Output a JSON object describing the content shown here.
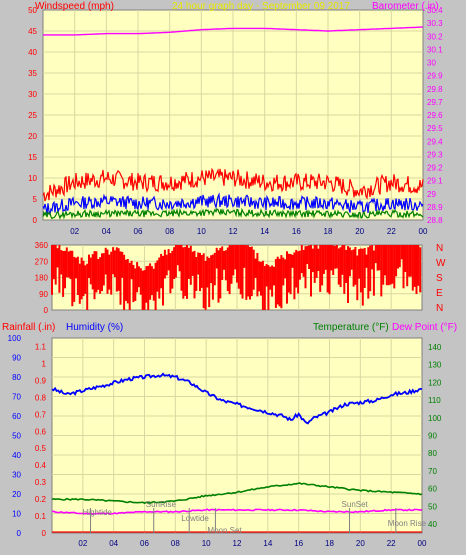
{
  "chart_data": [
    {
      "type": "line",
      "title": "24 hour graph day - September 09 2017",
      "ylabel_left": "Windspeed (mph)",
      "ylabel_right": "Barometer (.in)",
      "x_ticks": [
        "02",
        "04",
        "06",
        "08",
        "10",
        "12",
        "14",
        "16",
        "18",
        "20",
        "22",
        "00"
      ],
      "y_left_ticks": [
        "0",
        "5",
        "10",
        "15",
        "20",
        "25",
        "30",
        "35",
        "40",
        "45",
        "50"
      ],
      "y_right_ticks": [
        "28.8",
        "28.9",
        "29",
        "29.1",
        "29.2",
        "29.3",
        "29.4",
        "29.5",
        "29.6",
        "29.7",
        "29.8",
        "29.9",
        "30",
        "30.1",
        "30.2",
        "30.3",
        "30.4"
      ],
      "ylim_left": [
        0,
        50
      ],
      "ylim_right": [
        28.8,
        30.4
      ],
      "series": [
        {
          "name": "Barometer",
          "axis": "right",
          "x": [
            0,
            2,
            4,
            6,
            8,
            10,
            12,
            14,
            16,
            18,
            20,
            22,
            24
          ],
          "values": [
            30.21,
            30.21,
            30.22,
            30.22,
            30.23,
            30.25,
            30.26,
            30.26,
            30.25,
            30.24,
            30.25,
            30.26,
            30.27
          ]
        },
        {
          "name": "Gust",
          "axis": "left",
          "x": [
            0,
            2,
            4,
            6,
            8,
            10,
            12,
            14,
            16,
            18,
            20,
            22,
            24
          ],
          "values": [
            6,
            9,
            10,
            9,
            9,
            10,
            10,
            9,
            9,
            9,
            7,
            9,
            8
          ]
        },
        {
          "name": "Windspeed",
          "axis": "left",
          "x": [
            0,
            2,
            4,
            6,
            8,
            10,
            12,
            14,
            16,
            18,
            20,
            22,
            24
          ],
          "values": [
            2.5,
            4,
            4.5,
            4,
            4,
            4.5,
            4.5,
            4,
            4,
            4,
            3,
            4,
            3.5
          ]
        },
        {
          "name": "Average",
          "axis": "left",
          "x": [
            0,
            2,
            4,
            6,
            8,
            10,
            12,
            14,
            16,
            18,
            20,
            22,
            24
          ],
          "values": [
            1,
            1.5,
            1.5,
            1.5,
            1.5,
            1.8,
            1.8,
            1.6,
            1.5,
            1.5,
            1.2,
            1.5,
            1.3
          ]
        }
      ],
      "grid": true,
      "colors": {
        "gust": "#ff0000",
        "wind": "#0000ff",
        "avg": "#008000",
        "baro": "#ff00ff",
        "left_axis": "#ff0000",
        "right_axis": "#ff00ff",
        "title": "#e8e800"
      }
    },
    {
      "type": "scatter",
      "title": "",
      "y_ticks": [
        "0",
        "90",
        "180",
        "270",
        "360"
      ],
      "compass_labels": [
        "N",
        "W",
        "S",
        "E",
        "N"
      ],
      "ylim": [
        0,
        360
      ],
      "series": [
        {
          "name": "Wind direction",
          "x": [
            0,
            2,
            4,
            6,
            8,
            10,
            12,
            14,
            16,
            18,
            20,
            22,
            24
          ],
          "values": [
            300,
            180,
            250,
            120,
            280,
            200,
            310,
            150,
            260,
            290,
            220,
            330,
            270
          ]
        }
      ],
      "grid": true,
      "colors": {
        "dir": "#ff0000",
        "label": "#ff0000"
      }
    },
    {
      "type": "line",
      "labels": {
        "rainfall": "Rainfall (.in)",
        "humidity": "Humidity (%)",
        "temperature": "Temperature (°F)",
        "dewpoint": "Dew Point (°F)"
      },
      "x_ticks": [
        "02",
        "04",
        "06",
        "08",
        "10",
        "12",
        "14",
        "16",
        "18",
        "20",
        "22",
        "00"
      ],
      "y_humidity_ticks": [
        "0",
        "10",
        "20",
        "30",
        "40",
        "50",
        "60",
        "70",
        "80",
        "90",
        "100"
      ],
      "y_rain_ticks": [
        "0",
        "0.1",
        "0.2",
        "0.3",
        "0.4",
        "0.5",
        "0.6",
        "0.7",
        "0.8",
        "0.9",
        "1",
        "1.1"
      ],
      "y_temp_ticks": [
        "40",
        "50",
        "60",
        "70",
        "80",
        "90",
        "100",
        "110",
        "120",
        "130",
        "140"
      ],
      "ylim_humidity": [
        0,
        100
      ],
      "ylim_temp": [
        35,
        145
      ],
      "series": [
        {
          "name": "Humidity",
          "axis": "left",
          "x": [
            0,
            1,
            2,
            3,
            4,
            5,
            6,
            7,
            8,
            9,
            10,
            11,
            12,
            13,
            14,
            15,
            15.5,
            16,
            16.5,
            17,
            18,
            19,
            20,
            21,
            22,
            23,
            24
          ],
          "values": [
            74,
            71,
            73,
            75,
            77,
            79,
            80,
            81,
            80,
            77,
            72,
            68,
            66,
            64,
            62,
            60,
            58,
            61,
            56,
            59,
            62,
            66,
            67,
            68,
            71,
            72,
            74
          ]
        },
        {
          "name": "Temperature",
          "axis": "right",
          "x": [
            0,
            2,
            4,
            6,
            8,
            10,
            12,
            14,
            16,
            18,
            20,
            22,
            24
          ],
          "values": [
            54,
            54,
            53,
            52,
            53,
            56,
            58,
            61,
            63,
            61,
            59,
            58,
            57
          ]
        },
        {
          "name": "Dew Point",
          "axis": "right",
          "x": [
            0,
            2,
            4,
            6,
            8,
            10,
            12,
            14,
            16,
            18,
            20,
            22,
            24
          ],
          "values": [
            47,
            46,
            46,
            47,
            47,
            48,
            48,
            48,
            48,
            47,
            47,
            48,
            48
          ]
        }
      ],
      "events": [
        {
          "label": "Hightide",
          "x": 2.5
        },
        {
          "label": "SunRise",
          "x": 6.6
        },
        {
          "label": "Lowtide",
          "x": 8.9
        },
        {
          "label": "Moon Set",
          "x": 10.6
        },
        {
          "label": "SunSet",
          "x": 19.3
        },
        {
          "label": "Moon Rise",
          "x": 22.3
        }
      ],
      "grid": true,
      "colors": {
        "humidity": "#0000ff",
        "temperature": "#008000",
        "dewpoint": "#ff00ff",
        "rain": "#ff0000",
        "rain_axis": "#ff0000",
        "humidity_axis": "#0000ff",
        "temp_axis": "#008000",
        "events": "#808080"
      }
    }
  ]
}
